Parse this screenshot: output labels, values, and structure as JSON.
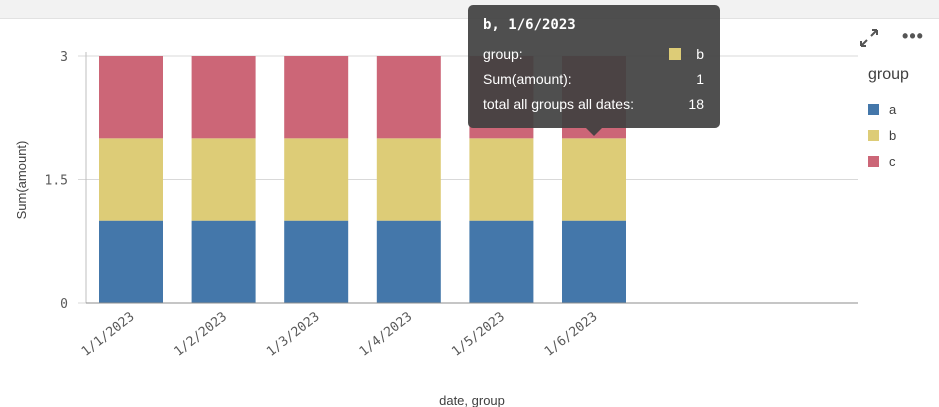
{
  "chart_data": {
    "type": "bar",
    "stacked": true,
    "categories": [
      "1/1/2023",
      "1/2/2023",
      "1/3/2023",
      "1/4/2023",
      "1/5/2023",
      "1/6/2023"
    ],
    "series": [
      {
        "name": "a",
        "color": "#4477aa",
        "values": [
          1,
          1,
          1,
          1,
          1,
          1
        ]
      },
      {
        "name": "b",
        "color": "#ddcc77",
        "values": [
          1,
          1,
          1,
          1,
          1,
          1
        ]
      },
      {
        "name": "c",
        "color": "#cc6677",
        "values": [
          1,
          1,
          1,
          1,
          1,
          1
        ]
      }
    ],
    "xlabel": "date, group",
    "ylabel": "Sum(amount)",
    "ylim": [
      0,
      3
    ],
    "yticks": [
      "0",
      "1.5",
      "3"
    ],
    "grid": true,
    "legend_position": "right"
  },
  "legend": {
    "title": "group",
    "items": [
      {
        "label": "a",
        "color": "#4477aa"
      },
      {
        "label": "b",
        "color": "#ddcc77"
      },
      {
        "label": "c",
        "color": "#cc6677"
      }
    ]
  },
  "tooltip": {
    "title": "b, 1/6/2023",
    "group_label": "group:",
    "group_value": "b",
    "group_color": "#ddcc77",
    "sum_label": "Sum(amount):",
    "sum_value": "1",
    "total_label": "total all groups all dates:",
    "total_value": "18"
  },
  "toolbar": {
    "expand_icon": "expand-icon",
    "more_icon": "more-options-icon",
    "more_glyph": "•••"
  }
}
